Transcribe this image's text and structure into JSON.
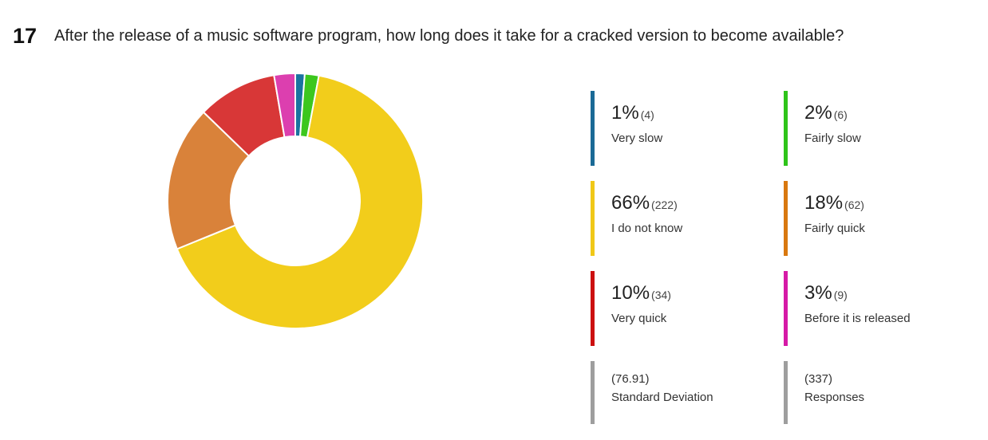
{
  "question": {
    "number": "17",
    "text": "After the release of a music software program, how long does it take for a cracked version to become available?"
  },
  "chart_data": {
    "type": "pie",
    "donut": true,
    "categories": [
      "Very slow",
      "Fairly slow",
      "I do not know",
      "Fairly quick",
      "Very quick",
      "Before it is released"
    ],
    "values": [
      4,
      6,
      222,
      62,
      34,
      9
    ],
    "percent_labels": [
      "1%",
      "2%",
      "66%",
      "18%",
      "10%",
      "3%"
    ],
    "count_labels": [
      "(4)",
      "(6)",
      "(222)",
      "(62)",
      "(34)",
      "(9)"
    ],
    "colors": [
      "#1a73a0",
      "#3cc71e",
      "#f2cd1b",
      "#d9823a",
      "#d83737",
      "#dc3faf"
    ],
    "legend_bar_colors": [
      "#1a6a96",
      "#2ec41a",
      "#f0c818",
      "#d9780f",
      "#cc1010",
      "#d61aa7"
    ],
    "legend_placement": "right"
  },
  "stats": {
    "std_dev_value": "(76.91)",
    "std_dev_label": "Standard Deviation",
    "responses_value": "(337)",
    "responses_label": "Responses"
  }
}
